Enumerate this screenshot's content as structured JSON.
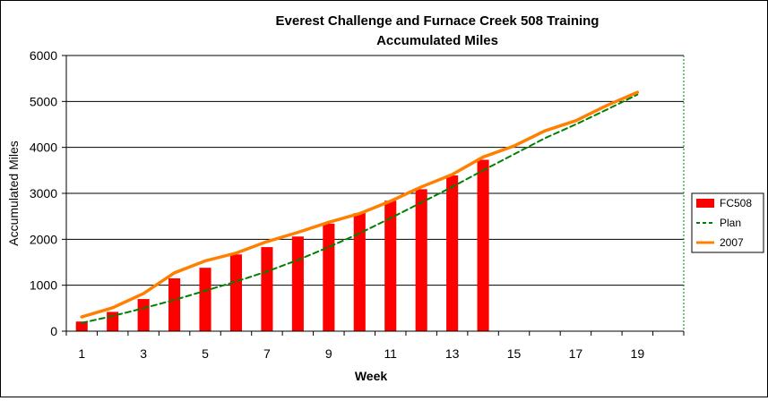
{
  "chart_data": {
    "type": "bar",
    "title_line1": "Everest Challenge and Furnace Creek 508 Training",
    "title_line2": "Accumulated Miles",
    "xlabel": "Week",
    "ylabel": "Accumulated Miles",
    "ylim": [
      0,
      6000
    ],
    "yticks": [
      0,
      1000,
      2000,
      3000,
      4000,
      5000,
      6000
    ],
    "xticks": [
      1,
      3,
      5,
      7,
      9,
      11,
      13,
      15,
      17,
      19
    ],
    "x": [
      1,
      2,
      3,
      4,
      5,
      6,
      7,
      8,
      9,
      10,
      11,
      12,
      13,
      14,
      15,
      16,
      17,
      18,
      19,
      20
    ],
    "grid": true,
    "legend_position": "right",
    "series": [
      {
        "name": "FC508",
        "kind": "bar",
        "color": "#ff0000",
        "values": [
          210,
          420,
          700,
          1150,
          1380,
          1670,
          1830,
          2060,
          2340,
          2570,
          2840,
          3090,
          3390,
          3730,
          null,
          null,
          null,
          null,
          null,
          null
        ]
      },
      {
        "name": "Plan",
        "kind": "dashed-line",
        "color": "#008000",
        "values": [
          180,
          330,
          500,
          680,
          880,
          1080,
          1300,
          1550,
          1830,
          2130,
          2460,
          2800,
          3140,
          3500,
          3850,
          4200,
          4500,
          4820,
          5150,
          null
        ]
      },
      {
        "name": "2007",
        "kind": "line",
        "color": "#ff8000",
        "values": [
          310,
          510,
          820,
          1270,
          1530,
          1700,
          1950,
          2150,
          2370,
          2560,
          2830,
          3140,
          3410,
          3790,
          4030,
          4360,
          4580,
          4910,
          5200,
          null
        ]
      }
    ]
  }
}
